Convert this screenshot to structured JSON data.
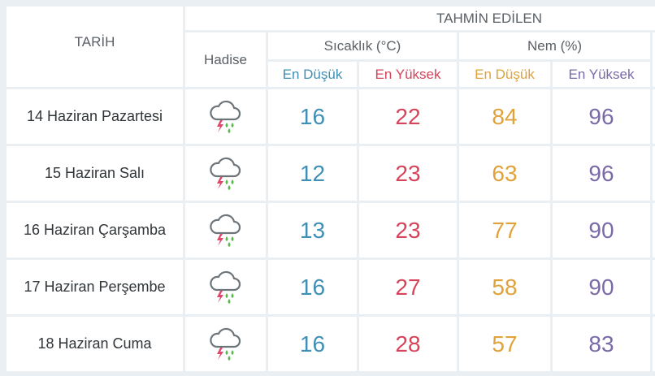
{
  "header": {
    "tarih": "TARİH",
    "tahmin": "TAHMİN EDİLEN",
    "hadise": "Hadise",
    "sicaklik": "Sıcaklık (°C)",
    "nem": "Nem (%)",
    "en_dusuk": "En Düşük",
    "en_yuksek": "En Yüksek"
  },
  "colors": {
    "temp_min": "#3f8fb6",
    "temp_max": "#d6445a",
    "hum_min": "#e0a23a",
    "hum_max": "#7b6aa8"
  },
  "rows": [
    {
      "date": "14 Haziran Pazartesi",
      "icon": "thunderstorm-rain-icon",
      "temp_min": "16",
      "temp_max": "22",
      "hum_min": "84",
      "hum_max": "96"
    },
    {
      "date": "15 Haziran Salı",
      "icon": "thunderstorm-rain-icon",
      "temp_min": "12",
      "temp_max": "23",
      "hum_min": "63",
      "hum_max": "96"
    },
    {
      "date": "16 Haziran Çarşamba",
      "icon": "thunderstorm-rain-icon",
      "temp_min": "13",
      "temp_max": "23",
      "hum_min": "77",
      "hum_max": "90"
    },
    {
      "date": "17 Haziran Perşembe",
      "icon": "thunderstorm-rain-icon",
      "temp_min": "16",
      "temp_max": "27",
      "hum_min": "58",
      "hum_max": "90"
    },
    {
      "date": "18 Haziran Cuma",
      "icon": "thunderstorm-rain-icon",
      "temp_min": "16",
      "temp_max": "28",
      "hum_min": "57",
      "hum_max": "83"
    }
  ]
}
